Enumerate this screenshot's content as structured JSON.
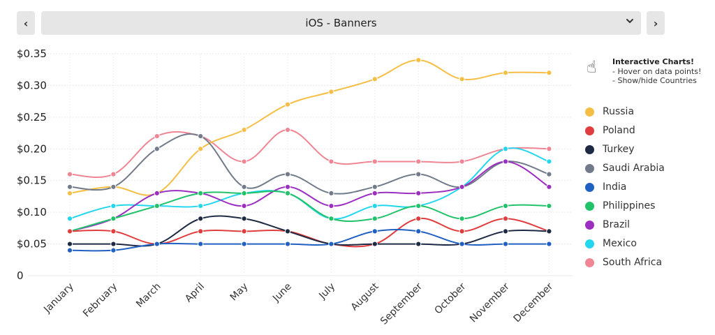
{
  "header": {
    "prev_icon": "‹",
    "next_icon": "›",
    "selector_label": "iOS - Banners",
    "selector_caret": "⌵"
  },
  "note": {
    "icon": "☝",
    "title": "Interactive Charts!",
    "line1": "- Hover on data points!",
    "line2": "- Show/hide Countries"
  },
  "chart_data": {
    "type": "line",
    "title": "iOS - Banners",
    "xlabel": "",
    "ylabel": "",
    "ylim": [
      0,
      0.35
    ],
    "yticks": [
      {
        "value": 0,
        "label": "0"
      },
      {
        "value": 0.05,
        "label": "$0.05"
      },
      {
        "value": 0.1,
        "label": "$0.10"
      },
      {
        "value": 0.15,
        "label": "$0.15"
      },
      {
        "value": 0.2,
        "label": "$0.20"
      },
      {
        "value": 0.25,
        "label": "$0.25"
      },
      {
        "value": 0.3,
        "label": "$0.30"
      },
      {
        "value": 0.35,
        "label": "$0.35"
      }
    ],
    "categories": [
      "January",
      "February",
      "March",
      "April",
      "May",
      "June",
      "July",
      "August",
      "September",
      "October",
      "November",
      "December"
    ],
    "grid": true,
    "legend_position": "right",
    "series": [
      {
        "name": "Russia",
        "color": "#f5be45",
        "values": [
          0.13,
          0.14,
          0.13,
          0.2,
          0.23,
          0.27,
          0.29,
          0.31,
          0.34,
          0.31,
          0.32,
          0.32
        ]
      },
      {
        "name": "Poland",
        "color": "#e03e3e",
        "values": [
          0.07,
          0.07,
          0.05,
          0.07,
          0.07,
          0.07,
          0.05,
          0.05,
          0.09,
          0.07,
          0.09,
          0.07
        ]
      },
      {
        "name": "Turkey",
        "color": "#1e2a44",
        "values": [
          0.05,
          0.05,
          0.05,
          0.09,
          0.09,
          0.07,
          0.05,
          0.05,
          0.05,
          0.05,
          0.07,
          0.07
        ]
      },
      {
        "name": "Saudi Arabia",
        "color": "#717b8a",
        "values": [
          0.14,
          0.14,
          0.2,
          0.22,
          0.14,
          0.16,
          0.13,
          0.14,
          0.16,
          0.14,
          0.18,
          0.16
        ]
      },
      {
        "name": "India",
        "color": "#2060c0",
        "values": [
          0.04,
          0.04,
          0.05,
          0.05,
          0.05,
          0.05,
          0.05,
          0.07,
          0.07,
          0.05,
          0.05,
          0.05
        ]
      },
      {
        "name": "Philippines",
        "color": "#22c26a",
        "values": [
          0.07,
          0.09,
          0.11,
          0.13,
          0.13,
          0.13,
          0.09,
          0.09,
          0.11,
          0.09,
          0.11,
          0.11
        ]
      },
      {
        "name": "Brazil",
        "color": "#9b2fc0",
        "values": [
          0.07,
          0.09,
          0.13,
          0.13,
          0.11,
          0.14,
          0.11,
          0.13,
          0.13,
          0.14,
          0.18,
          0.14
        ]
      },
      {
        "name": "Mexico",
        "color": "#22d6ee",
        "values": [
          0.09,
          0.11,
          0.11,
          0.11,
          0.13,
          0.13,
          0.09,
          0.11,
          0.11,
          0.14,
          0.2,
          0.18
        ]
      },
      {
        "name": "South Africa",
        "color": "#f08593",
        "values": [
          0.16,
          0.16,
          0.22,
          0.22,
          0.18,
          0.23,
          0.18,
          0.18,
          0.18,
          0.18,
          0.2,
          0.2
        ]
      }
    ]
  }
}
